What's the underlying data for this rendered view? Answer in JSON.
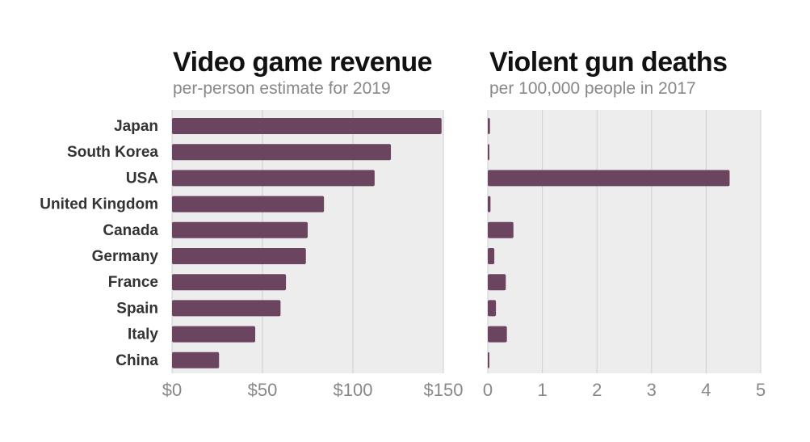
{
  "colors": {
    "bar": "#6b4560",
    "panel_bg": "#ededed",
    "grid": "#cfcfcf",
    "title": "#111111",
    "subtitle": "#888888",
    "category": "#333333",
    "tick": "#888888"
  },
  "chart_data": {
    "categories": [
      "Japan",
      "South Korea",
      "USA",
      "United Kingdom",
      "Canada",
      "Germany",
      "France",
      "Spain",
      "Italy",
      "China"
    ],
    "panels": [
      {
        "type": "bar",
        "orientation": "horizontal",
        "title": "Video game revenue",
        "subtitle": "per-person estimate for 2019",
        "unit": "USD per person",
        "values": [
          149,
          121,
          112,
          84,
          75,
          74,
          63,
          60,
          46,
          26
        ],
        "xlim": [
          0,
          150
        ],
        "ticks": [
          0,
          50,
          100,
          150
        ],
        "tick_labels": [
          "$0",
          "$50",
          "$100",
          "$150"
        ],
        "grid": true
      },
      {
        "type": "bar",
        "orientation": "horizontal",
        "title": "Violent gun deaths",
        "subtitle": "per 100,000 people in 2017",
        "unit": "deaths per 100,000",
        "values": [
          0.04,
          0.02,
          4.43,
          0.05,
          0.47,
          0.12,
          0.33,
          0.15,
          0.35,
          0.02
        ],
        "xlim": [
          0,
          5
        ],
        "ticks": [
          0,
          1,
          2,
          3,
          4,
          5
        ],
        "tick_labels": [
          "0",
          "1",
          "2",
          "3",
          "4",
          "5"
        ],
        "grid": true
      }
    ]
  }
}
